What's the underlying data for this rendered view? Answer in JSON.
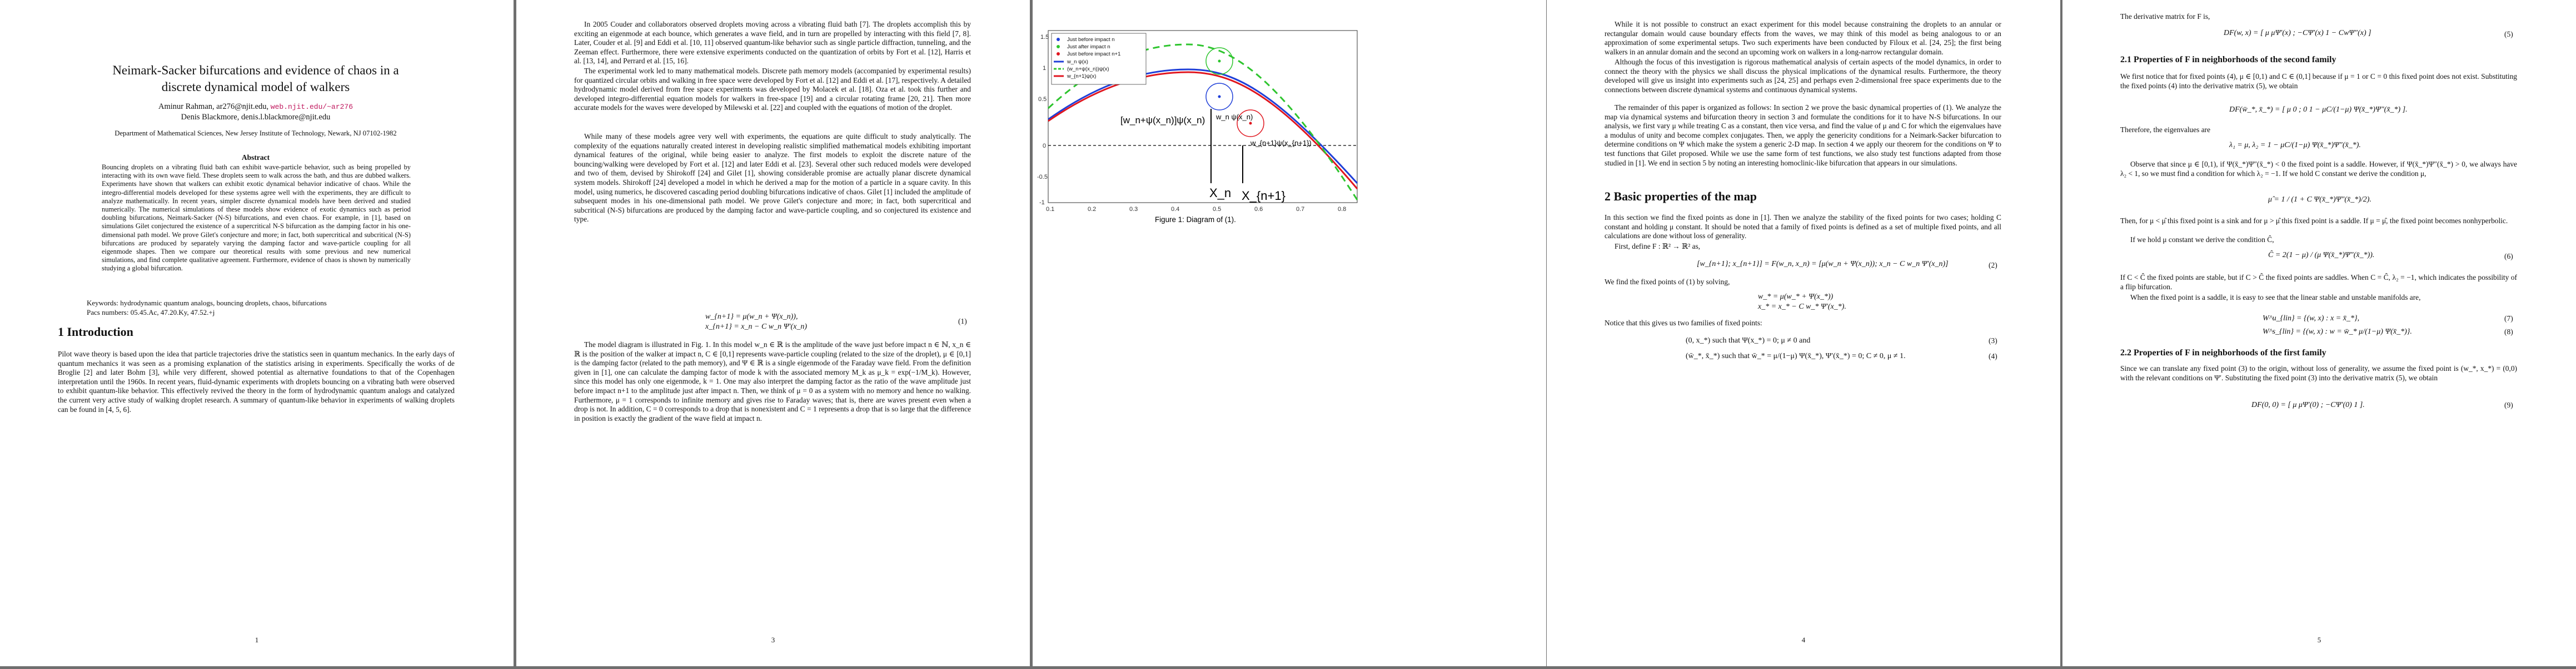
{
  "arxiv_id": "arXiv:1507.08057v2  [nlin.CD]  21 Jun 2016",
  "page1": {
    "title_line1": "Neimark-Sacker bifurcations and evidence of chaos in a",
    "title_line2": "discrete dynamical model of walkers",
    "author1": "Aminur Rahman, ar276@njit.edu,",
    "author1_url": "web.njit.edu/~ar276",
    "author2": "Denis Blackmore, denis.l.blackmore@njit.edu",
    "affiliation": "Department of Mathematical Sciences, New Jersey Institute of Technology, Newark, NJ 07102-1982",
    "abstract_heading": "Abstract",
    "abstract_text": "Bouncing droplets on a vibrating fluid bath can exhibit wave-particle behavior, such as being propelled by interacting with its own wave field. These droplets seem to walk across the bath, and thus are dubbed walkers. Experiments have shown that walkers can exhibit exotic dynamical behavior indicative of chaos. While the integro-differential models developed for these systems agree well with the experiments, they are difficult to analyze mathematically. In recent years, simpler discrete dynamical models have been derived and studied numerically. The numerical simulations of these models show evidence of exotic dynamics such as period doubling bifurcations, Neimark-Sacker (N-S) bifurcations, and even chaos. For example, in [1], based on simulations Gilet conjectured the existence of a supercritical N-S bifurcation as the damping factor in his one-dimensional path model. We prove Gilet's conjecture and more; in fact, both supercritical and subcritical (N-S) bifurcations are produced by separately varying the damping factor and wave-particle coupling for all eigenmode shapes. Then we compare our theoretical results with some previous and new numerical simulations, and find complete qualitative agreement. Furthermore, evidence of chaos is shown by numerically studying a global bifurcation.",
    "keywords": "Keywords: hydrodynamic quantum analogs, bouncing droplets, chaos, bifurcations",
    "pacs": "Pacs numbers: 05.45.Ac, 47.20.Ky, 47.52.+j",
    "section_heading": "1   Introduction",
    "intro_text": "Pilot wave theory is based upon the idea that particle trajectories drive the statistics seen in quantum mechanics. In the early days of quantum mechanics it was seen as a promising explanation of the statistics arising in experiments. Specifically the works of de Broglie [2] and later Bohm [3], while very different, showed potential as alternative foundations to that of the Copenhagen interpretation until the 1960s. In recent years, fluid-dynamic experiments with droplets bouncing on a vibrating bath were observed to exhibit quantum-like behavior. This effectively revived the theory in the form of hydrodynamic quantum analogs and catalyzed the current very active study of walking droplet research. A summary of quantum-like behavior in experiments of walking droplets can be found in [4, 5, 6].",
    "page_number": "1"
  },
  "page3": {
    "para1": "In 2005 Couder and collaborators observed droplets moving across a vibrating fluid bath [7]. The droplets accomplish this by exciting an eigenmode at each bounce, which generates a wave field, and in turn are propelled by interacting with this field [7, 8]. Later, Couder et al. [9] and Eddi et al. [10, 11] observed quantum-like behavior such as single particle diffraction, tunneling, and the Zeeman effect. Furthermore, there were extensive experiments conducted on the quantization of orbits by Fort et al. [12], Harris et al. [13, 14], and Perrard et al. [15, 16].",
    "para2": "The experimental work led to many mathematical models. Discrete path memory models (accompanied by experimental results) for quantized circular orbits and walking in free space were developed by Fort et al. [12] and Eddi et al. [17], respectively. A detailed hydrodynamic model derived from free space experiments was developed by Molacek et al. [18]. Oza et al. took this further and developed integro-differential equation models for walkers in free-space [19] and a circular rotating frame [20, 21]. Then more accurate models for the waves were developed by Milewski et al. [22] and coupled with the equations of motion of the droplet.",
    "para3": "While many of these models agree very well with experiments, the equations are quite difficult to study analytically. The complexity of the equations naturally created interest in developing realistic simplified mathematical models exhibiting important dynamical features of the original, while being easier to analyze. The first models to exploit the discrete nature of the bouncing/walking were developed by Fort et al. [12] and later Eddi et al. [23]. Several other such reduced models were developed and two of them, devised by Shirokoff [24] and Gilet [1], showing considerable promise are actually planar discrete dynamical system models. Shirokoff [24] developed a model in which he derived a map for the motion of a particle in a square cavity. In this model, using numerics, he discovered cascading period doubling bifurcations indicative of chaos. Gilet [1] included the amplitude of subsequent modes in his one-dimensional path model. We prove Gilet's conjecture and more; in fact, both supercritical and subcritical (N-S) bifurcations are produced by the damping factor and wave-particle coupling, and so conjectured its existence and type.",
    "eq1_line1": "w_{n+1} = μ(w_n + Ψ(x_n)),",
    "eq1_line2": "x_{n+1} = x_n − C w_n Ψ′(x_n)",
    "eq1_number": "(1)",
    "para4": "The model diagram is illustrated in Fig. 1. In this model w_n ∈ ℝ is the amplitude of the wave just before impact n ∈ ℕ, x_n ∈ ℝ is the position of the walker at impact n, C ∈ [0,1] represents wave-particle coupling (related to the size of the droplet), μ ∈ [0,1] is the damping factor (related to the path memory), and Ψ ∈ ℝ is a single eigenmode of the Faraday wave field. From the definition given in [1], one can calculate the damping factor of mode k with the associated memory M_k as μ_k = exp(−1/M_k). However, since this model has only one eigenmode, k = 1. One may also interpret the damping factor as the ratio of the wave amplitude just before impact n+1 to the amplitude just after impact n. Then, we think of μ = 0 as a system with no memory and hence no walking. Furthermore, μ = 1 corresponds to infinite memory and gives rise to Faraday waves; that is, there are waves present even when a drop is not. In addition, C = 0 corresponds to a drop that is nonexistent and C = 1 represents a drop that is so large that the difference in position is exactly the gradient of the wave field at impact n.",
    "figure_caption": "Figure 1: Diagram of (1).",
    "page_number": "3"
  },
  "page4": {
    "para1": "While it is not possible to construct an exact experiment for this model because constraining the droplets to an annular or rectangular domain would cause boundary effects from the waves, we may think of this model as being analogous to or an approximation of some experimental setups. Two such experiments have been conducted by Filoux et al. [24, 25]; the first being walkers in an annular domain and the second an upcoming work on walkers in a long-narrow rectangular domain.",
    "para2": "Although the focus of this investigation is rigorous mathematical analysis of certain aspects of the model dynamics, in order to connect the theory with the physics we shall discuss the physical implications of the dynamical results. Furthermore, the theory developed will give us insight into experiments such as [24, 25] and perhaps even 2-dimensional free space experiments due to the connections between discrete dynamical systems and continuous dynamical systems.",
    "para3": "The remainder of this paper is organized as follows: In section 2 we prove the basic dynamical properties of (1). We analyze the map via dynamical systems and bifurcation theory in section 3 and formulate the conditions for it to have N-S bifurcations. In our analysis, we first vary μ while treating C as a constant, then vice versa, and find the value of μ and C for which the eigenvalues have a modulus of unity and become complex conjugates. Then, we apply the genericity conditions for a Neimark-Sacker bifurcation to determine conditions on Ψ which make the system a generic 2-D map. In section 4 we apply our theorem for the conditions on Ψ to test functions that Gilet proposed. While we use the same form of test functions, we also study test functions adapted from those studied in [1]. We end in section 5 by noting an interesting homoclinic-like bifurcation that appears in our simulations.",
    "section_heading": "2   Basic properties of the map",
    "para4": "In this section we find the fixed points as done in [1]. Then we analyze the stability of the fixed points for two cases; holding C constant and holding μ constant. It should be noted that a family of fixed points is defined as a set of multiple fixed points, and all calculations are done without loss of generality.",
    "para5": "First, define F : ℝ² → ℝ² as,",
    "eq2": "[w_{n+1}; x_{n+1}] = F(w_n, x_n) = [μ(w_n + Ψ(x_n)); x_n − C w_n Ψ′(x_n)]",
    "eq2_number": "(2)",
    "para6": "We find the fixed points of (1) by solving,",
    "eq_fp1": "w_* = μ(w_* + Ψ(x_*))",
    "eq_fp2": "x_* = x_* − C w_* Ψ′(x_*).",
    "para7": "Notice that this gives us two families of fixed points:",
    "eq3": "(0, x_*) such that Ψ(x_*) = 0; μ ≠ 0 and",
    "eq3_number": "(3)",
    "eq4": "(w̄_*, x̄_*) such that w̄_* = μ/(1−μ) Ψ(x̄_*), Ψ′(x̄_*) = 0; C ≠ 0, μ ≠ 1.",
    "eq4_number": "(4)",
    "page_number": "4"
  },
  "page5": {
    "para1": "The derivative matrix for F is,",
    "eq5": "DF(w, x) = [ μ   μΨ′(x) ; −CΨ′(x)   1 − CwΨ″(x) ]",
    "eq5_number": "(5)",
    "subsection1": "2.1   Properties of F in neighborhoods of the second family",
    "para2": "We first notice that for fixed points (4), μ ∈ [0,1) and C ∈ (0,1] because if μ = 1 or C = 0 this fixed point does not exist. Substituting the fixed points (4) into the derivative matrix (5), we obtain",
    "eq_df": "DF(w̄_*, x̄_*) = [ μ   0 ; 0   1 − μC/(1−μ) Ψ(x̄_*)Ψ″(x̄_*) ].",
    "para3": "Therefore, the eigenvalues are",
    "eq_eig": "λ₁ = μ,  λ₂ = 1 − μC/(1−μ) Ψ(x̄_*)Ψ″(x̄_*).",
    "para4": "Observe that since μ ∈ [0,1), if Ψ(x̄_*)Ψ″(x̄_*) < 0 the fixed point is a saddle. However, if Ψ(x̄_*)Ψ″(x̄_*) > 0, we always have λ₂ < 1, so we must find a condition for which λ₂ = −1. If we hold C constant we derive the condition μ,",
    "eq_mu": "μ̂ = 1 / (1 + C Ψ(x̄_*)Ψ″(x̄_*)/2).",
    "para5": "Then, for μ < μ̂ this fixed point is a sink and for μ > μ̂ this fixed point is a saddle. If μ = μ̂, the fixed point becomes nonhyperbolic.",
    "para6": "If we hold μ constant we derive the condition Ĉ,",
    "eq6": "Ĉ = 2(1 − μ) / (μ Ψ(x̄_*)Ψ″(x̄_*)).",
    "eq6_number": "(6)",
    "para7": "If C < Ĉ the fixed points are stable, but if C > Ĉ the fixed points are saddles. When C = Ĉ, λ₂ = −1, which indicates the possibility of a flip bifurcation.",
    "para8": "When the fixed point is a saddle, it is easy to see that the linear stable and unstable manifolds are,",
    "eq7": "W^u_{lin} = {(w, x) : x = x̄_*},",
    "eq7_number": "(7)",
    "eq8": "W^s_{lin} = {(w, x) : w = w̄_* μ/(1−μ) Ψ(x̄_*)}.",
    "eq8_number": "(8)",
    "subsection2": "2.2   Properties of F in neighborhoods of the first family",
    "para9": "Since we can translate any fixed point (3) to the origin, without loss of generality, we assume the fixed point is (w_*, x_*) = (0,0) with the relevant conditions on Ψ′. Substituting the fixed point (3) into the derivative matrix (5), we obtain",
    "eq9": "DF(0, 0) = [ μ   μΨ′(0) ; −CΨ′(0)   1 ].",
    "eq9_number": "(9)",
    "page_number": "5"
  },
  "figure": {
    "legend": [
      "Just before impact n",
      "Just after impact n",
      "Just before impact n+1",
      "w_n ψ(x)",
      "(w_n+ψ(x_n))ψ(x)",
      "w_{n+1}ψ(x)"
    ],
    "annotations": [
      "[w_n+ψ(x_n)]ψ(x_n)",
      "w_n ψ(x_n)",
      "w_{n+1}ψ(x_{n+1})",
      "X_n",
      "X_{n+1}"
    ],
    "x_ticks": [
      "0.1",
      "0.2",
      "0.3",
      "0.4",
      "0.5",
      "0.6",
      "0.7",
      "0.8"
    ],
    "y_ticks": [
      "1.5",
      "1",
      "0.5",
      "0",
      "-0.5",
      "-1"
    ],
    "colors": {
      "blue": "#1f3fd8",
      "green": "#2ec52e",
      "red": "#e0161f",
      "black": "#000000"
    }
  }
}
